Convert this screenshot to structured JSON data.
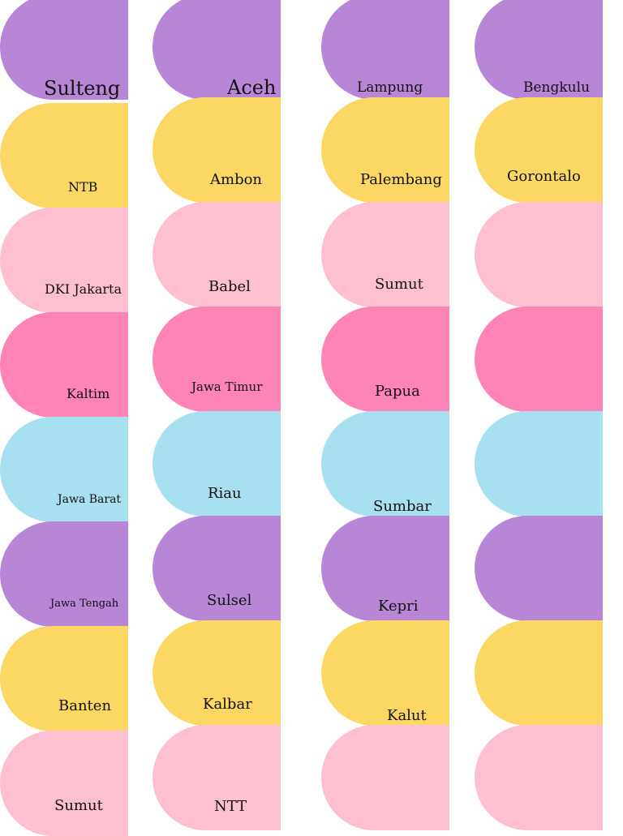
{
  "palette": {
    "purple": "#b886d7",
    "yellow": "#fdd764",
    "light_pink": "#fec0d0",
    "pink": "#fe83b6",
    "light_blue": "#a7e0ee"
  },
  "columns": [
    {
      "tiles": [
        {
          "color": "purple",
          "label": "Sulteng"
        },
        {
          "color": "yellow",
          "label": "NTB"
        },
        {
          "color": "light_pink",
          "label": "DKI Jakarta"
        },
        {
          "color": "pink",
          "label": "Kaltim"
        },
        {
          "color": "light_blue",
          "label": "Jawa Barat"
        },
        {
          "color": "purple",
          "label": "Jawa Tengah"
        },
        {
          "color": "yellow",
          "label": "Banten"
        },
        {
          "color": "light_pink",
          "label": "Sumut"
        }
      ]
    },
    {
      "tiles": [
        {
          "color": "purple",
          "label": "Aceh"
        },
        {
          "color": "yellow",
          "label": "Ambon"
        },
        {
          "color": "light_pink",
          "label": "Babel"
        },
        {
          "color": "pink",
          "label": "Jawa Timur"
        },
        {
          "color": "light_blue",
          "label": "Riau"
        },
        {
          "color": "purple",
          "label": "Sulsel"
        },
        {
          "color": "yellow",
          "label": "Kalbar"
        },
        {
          "color": "light_pink",
          "label": "NTT"
        }
      ]
    },
    {
      "tiles": [
        {
          "color": "purple",
          "label": "Lampung"
        },
        {
          "color": "yellow",
          "label": "Palembang"
        },
        {
          "color": "light_pink",
          "label": "Sumut"
        },
        {
          "color": "pink",
          "label": "Papua"
        },
        {
          "color": "light_blue",
          "label": "Sumbar"
        },
        {
          "color": "purple",
          "label": "Kepri"
        },
        {
          "color": "yellow",
          "label": "Kalut"
        },
        {
          "color": "light_pink",
          "label": ""
        }
      ]
    },
    {
      "tiles": [
        {
          "color": "purple",
          "label": "Bengkulu"
        },
        {
          "color": "yellow",
          "label": "Gorontalo"
        },
        {
          "color": "light_pink",
          "label": ""
        },
        {
          "color": "pink",
          "label": ""
        },
        {
          "color": "light_blue",
          "label": ""
        },
        {
          "color": "purple",
          "label": ""
        },
        {
          "color": "yellow",
          "label": ""
        },
        {
          "color": "light_pink",
          "label": ""
        }
      ]
    }
  ]
}
